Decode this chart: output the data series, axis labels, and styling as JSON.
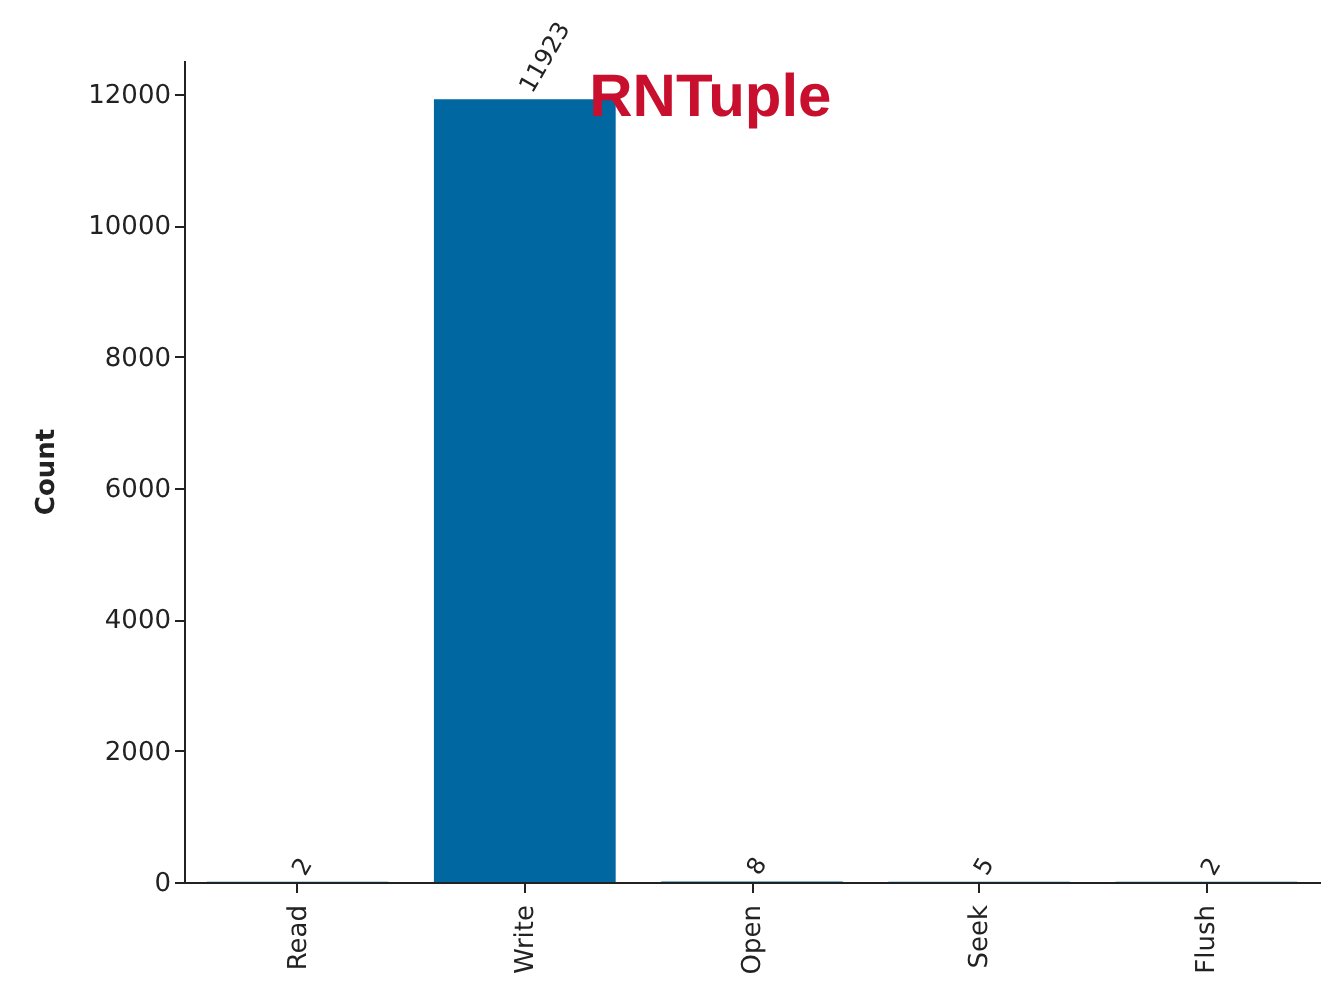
{
  "chart_data": {
    "type": "bar",
    "title": "RNTuple",
    "ylabel": "Count",
    "categories": [
      "Read",
      "Write",
      "Open",
      "Seek",
      "Flush"
    ],
    "values": [
      2,
      11923,
      8,
      5,
      2
    ],
    "color": "#0067a0",
    "data_labels": true,
    "ylim": [
      0,
      12519
    ],
    "yticks": [
      0,
      2000,
      4000,
      6000,
      8000,
      10000,
      12000
    ],
    "grid": false
  }
}
